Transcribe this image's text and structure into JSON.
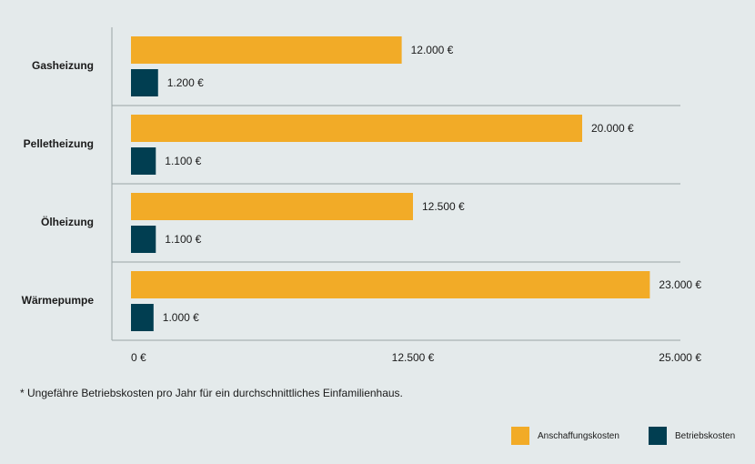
{
  "colors": {
    "anschaffung": "#f2ab27",
    "betrieb": "#013e51",
    "background": "#e4eaeb",
    "axis": "#9aa4a6"
  },
  "chart_data": {
    "type": "bar",
    "orientation": "horizontal",
    "categories": [
      "Gasheizung",
      "Pelletheizung",
      "Ölheizung",
      "Wärmepumpe"
    ],
    "series": [
      {
        "name": "Anschaffungskosten",
        "values": [
          12000,
          20000,
          12500,
          23000
        ],
        "labels": [
          "12.000 €",
          "20.000 €",
          "12.500 €",
          "23.000 €"
        ]
      },
      {
        "name": "Betriebskosten",
        "values": [
          1200,
          1100,
          1100,
          1000
        ],
        "labels": [
          "1.200 €",
          "1.100 €",
          "1.100 €",
          "1.000 €"
        ]
      }
    ],
    "xlim": [
      0,
      25000
    ],
    "xticks": [
      0,
      12500,
      25000
    ],
    "xtick_labels": [
      "0 €",
      "12.500 €",
      "25.000 €"
    ],
    "legend_position": "bottom-right",
    "grid": false
  },
  "footnote": "* Ungefähre Betriebskosten pro Jahr für ein durchschnittliches Einfamilienhaus."
}
